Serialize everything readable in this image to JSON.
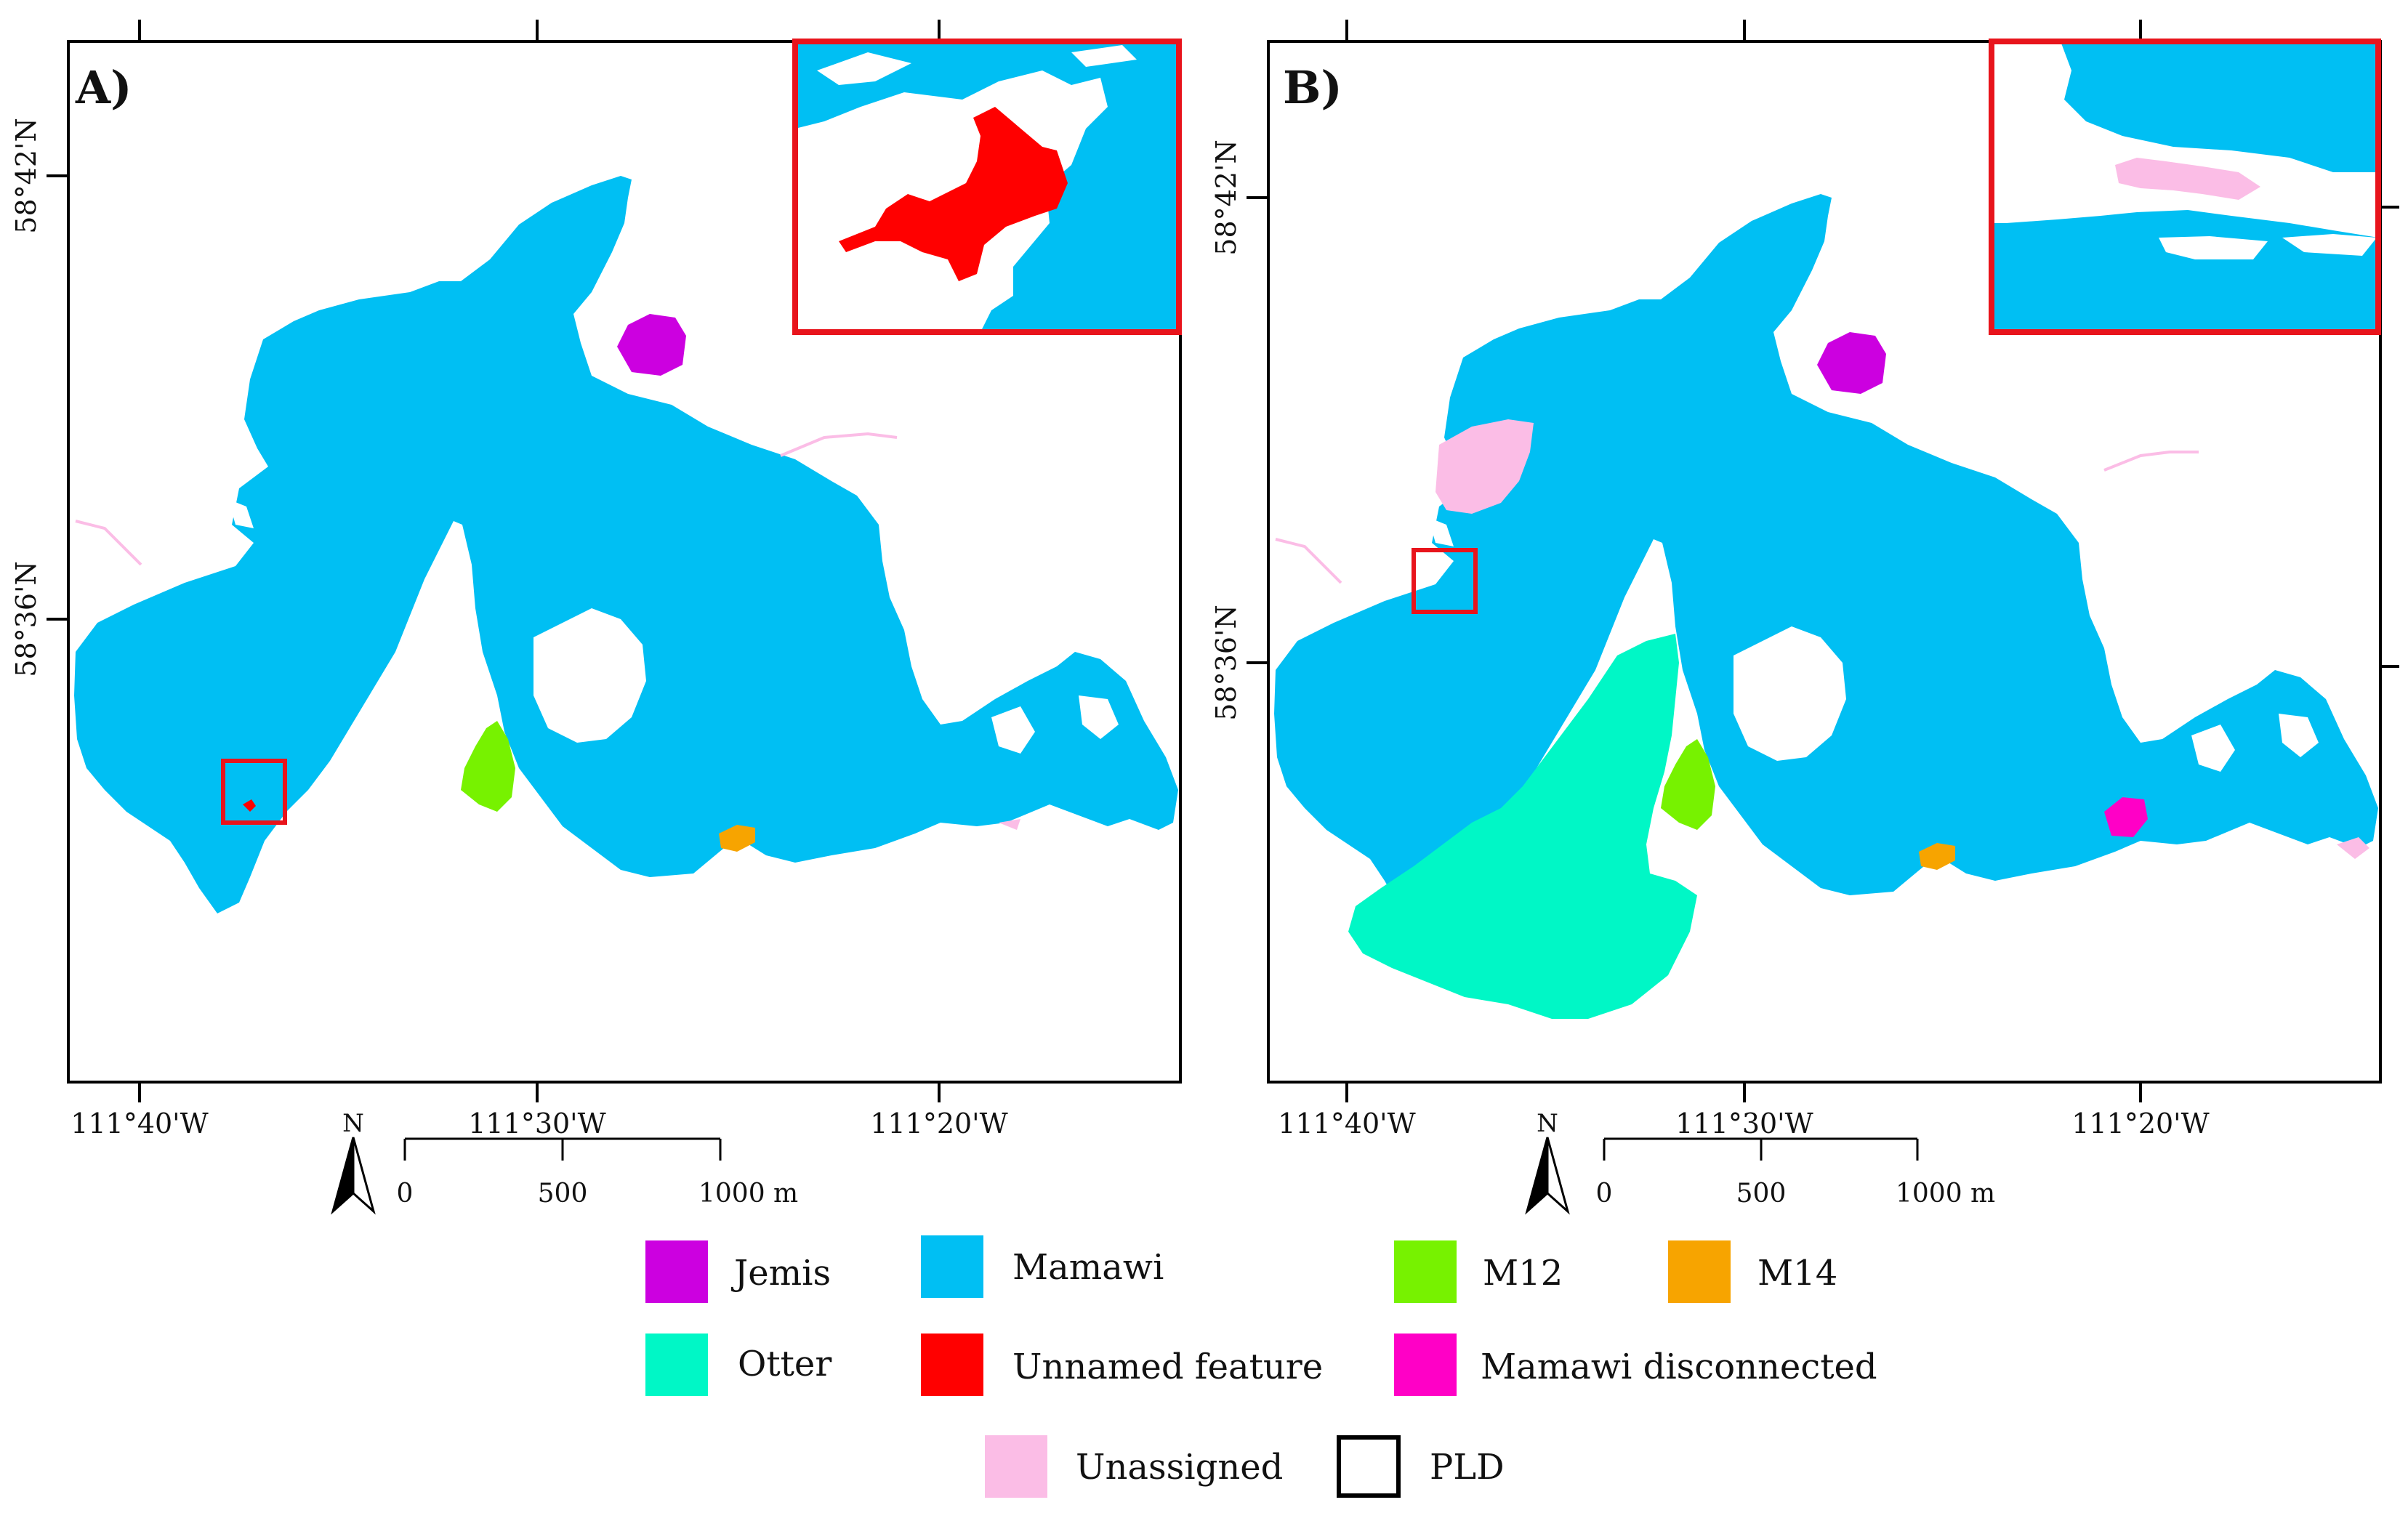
{
  "panels": [
    {
      "id": "A",
      "label": "A)",
      "lat_labels": [
        "58°42'N",
        "58°36'N"
      ],
      "lon_labels": [
        "111°40'W",
        "111°30'W",
        "111°20'W"
      ],
      "north_label": "N",
      "scale_labels": [
        "0",
        "500",
        "1000 m"
      ]
    },
    {
      "id": "B",
      "label": "B)",
      "lat_labels": [
        "58°42'N",
        "58°36'N"
      ],
      "lon_labels": [
        "111°40'W",
        "111°30'W",
        "111°20'W"
      ],
      "north_label": "N",
      "scale_labels": [
        "0",
        "500",
        "1000 m"
      ]
    }
  ],
  "legend": [
    {
      "key": "jemis",
      "label": "Jemis",
      "color": "#CC00E0"
    },
    {
      "key": "mamawi",
      "label": "Mamawi",
      "color": "#00BFF3"
    },
    {
      "key": "m12",
      "label": "M12",
      "color": "#77F200"
    },
    {
      "key": "m14",
      "label": "M14",
      "color": "#F7A400"
    },
    {
      "key": "otter",
      "label": "Otter",
      "color": "#00F7C6"
    },
    {
      "key": "unnamed",
      "label": "Unnamed feature",
      "color": "#FF0000"
    },
    {
      "key": "disconnected",
      "label": "Mamawi disconnected",
      "color": "#FF00C6"
    },
    {
      "key": "unassigned",
      "label": "Unassigned",
      "color": "#FBBDE6"
    },
    {
      "key": "pld",
      "label": "PLD",
      "color": "#000000"
    }
  ]
}
